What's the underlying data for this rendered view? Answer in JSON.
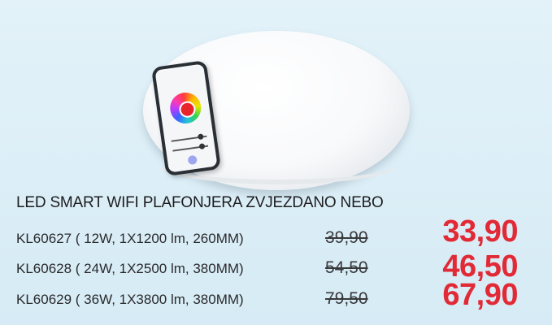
{
  "product": {
    "title": "LED SMART WIFI PLAFONJERA ZVJEZDANO NEBO"
  },
  "variants": [
    {
      "spec": "KL60627 ( 12W, 1X1200 lm, 260MM)",
      "old_price": "39,90",
      "new_price": "33,90"
    },
    {
      "spec": "KL60628 ( 24W, 1X2500 lm, 380MM)",
      "old_price": "54,50",
      "new_price": "46,50"
    },
    {
      "spec": "KL60629 ( 36W, 1X3800 lm, 380MM)",
      "old_price": "79,50",
      "new_price": "67,90"
    }
  ],
  "colors": {
    "price": "#e12a36",
    "background": "#dbeef7"
  }
}
